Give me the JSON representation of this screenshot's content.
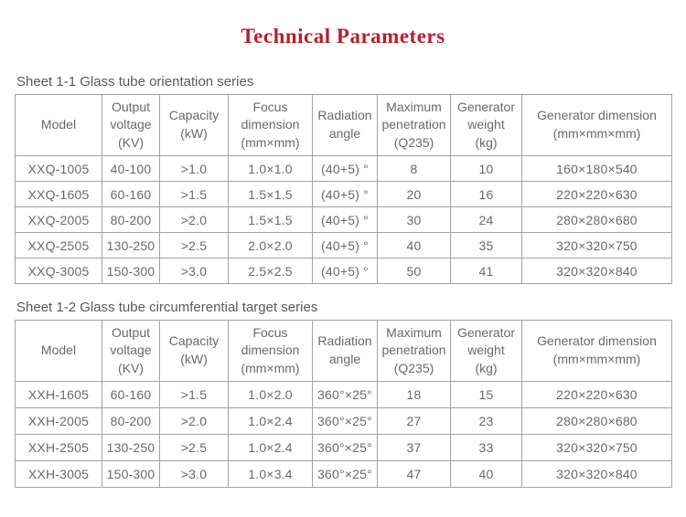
{
  "title": "Technical Parameters",
  "colors": {
    "title_red": "#b6202e",
    "text_gray": "#6a6a6a",
    "border_gray": "#a2a2a2"
  },
  "tables": [
    {
      "caption": "Sheet 1-1 Glass tube orientation series",
      "headers": [
        "Model",
        "Output\nvoltage\n(KV)",
        "Capacity\n(kW)",
        "Focus\ndimension\n(mm×mm)",
        "Radiation\nangle",
        "Maximum\npenetration\n(Q235)",
        "Generator\nweight\n(kg)",
        "Generator dimension\n(mm×mm×mm)"
      ],
      "rows": [
        [
          "XXQ-1005",
          "40-100",
          ">1.0",
          "1.0×1.0",
          "(40+5) °",
          "8",
          "10",
          "160×180×540"
        ],
        [
          "XXQ-1605",
          "60-160",
          ">1.5",
          "1.5×1.5",
          "(40+5) °",
          "20",
          "16",
          "220×220×630"
        ],
        [
          "XXQ-2005",
          "80-200",
          ">2.0",
          "1.5×1.5",
          "(40+5) °",
          "30",
          "24",
          "280×280×680"
        ],
        [
          "XXQ-2505",
          "130-250",
          ">2.5",
          "2.0×2.0",
          "(40+5) °",
          "40",
          "35",
          "320×320×750"
        ],
        [
          "XXQ-3005",
          "150-300",
          ">3.0",
          "2.5×2.5",
          "(40+5) °",
          "50",
          "41",
          "320×320×840"
        ]
      ]
    },
    {
      "caption": "Sheet 1-2 Glass tube circumferential target series",
      "headers": [
        "Model",
        "Output\nvoltage\n(KV)",
        "Capacity\n(kW)",
        "Focus\ndimension\n(mm×mm)",
        "Radiation\nangle",
        "Maximum\npenetration\n(Q235)",
        "Generator\nweight\n(kg)",
        "Generator dimension\n(mm×mm×mm)"
      ],
      "rows": [
        [
          "XXH-1605",
          "60-160",
          ">1.5",
          "1.0×2.0",
          "360°×25°",
          "18",
          "15",
          "220×220×630"
        ],
        [
          "XXH-2005",
          "80-200",
          ">2.0",
          "1.0×2.4",
          "360°×25°",
          "27",
          "23",
          "280×280×680"
        ],
        [
          "XXH-2505",
          "130-250",
          ">2.5",
          "1.0×2.4",
          "360°×25°",
          "37",
          "33",
          "320×320×750"
        ],
        [
          "XXH-3005",
          "150-300",
          ">3.0",
          "1.0×3.4",
          "360°×25°",
          "47",
          "40",
          "320×320×840"
        ]
      ]
    }
  ]
}
